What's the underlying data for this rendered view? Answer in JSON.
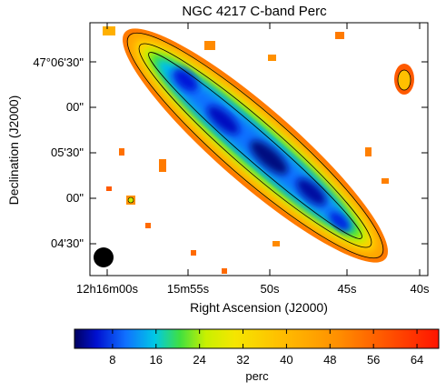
{
  "figure": {
    "title": "NGC 4217   C-band   Perc",
    "xlabel": "Right Ascension (J2000)",
    "ylabel": "Declination (J2000)",
    "x_ticks": [
      "12h16m00s",
      "15m55s",
      "50s",
      "45s",
      "40s"
    ],
    "y_ticks": [
      "47°06'30\"",
      "00\"",
      "05'30\"",
      "00\"",
      "04'30\""
    ],
    "colorbar": {
      "label": "perc",
      "ticks": [
        "8",
        "16",
        "24",
        "32",
        "40",
        "48",
        "56",
        "64"
      ],
      "range": [
        1,
        68
      ]
    },
    "colors": {
      "low": "#000060",
      "blue": "#1155ff",
      "cyan": "#00c8e6",
      "green": "#40e040",
      "yellow": "#f5e600",
      "orange": "#ff9a00",
      "red": "#ff1e00"
    }
  }
}
